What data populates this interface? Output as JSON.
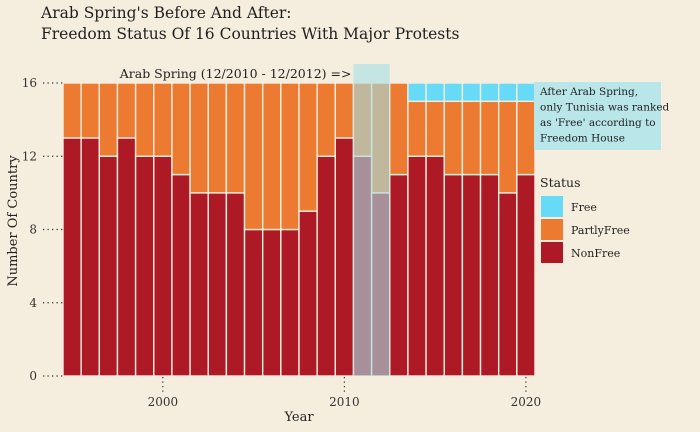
{
  "chart_data": {
    "type": "bar",
    "stacked": true,
    "title": "Arab Spring's Before And After:",
    "subtitle": "Freedom Status Of 16 Countries With Major Protests",
    "xlabel": "Year",
    "ylabel": "Number Of Country",
    "x": [
      1995,
      1996,
      1997,
      1998,
      1999,
      2000,
      2001,
      2002,
      2003,
      2004,
      2005,
      2006,
      2007,
      2008,
      2009,
      2010,
      2011,
      2012,
      2013,
      2014,
      2015,
      2016,
      2017,
      2018,
      2019,
      2020
    ],
    "series": [
      {
        "name": "NonFree",
        "color": "#ad1a26",
        "values": [
          13,
          13,
          12,
          13,
          12,
          12,
          11,
          10,
          10,
          10,
          8,
          8,
          8,
          9,
          12,
          13,
          12,
          10,
          11,
          12,
          12,
          11,
          11,
          11,
          10,
          11
        ]
      },
      {
        "name": "PartlyFree",
        "color": "#ec7a30",
        "values": [
          3,
          3,
          4,
          3,
          4,
          4,
          5,
          6,
          6,
          6,
          8,
          8,
          8,
          7,
          4,
          3,
          4,
          6,
          5,
          3,
          3,
          4,
          4,
          4,
          5,
          4
        ]
      },
      {
        "name": "Free",
        "color": "#66daf6",
        "values": [
          0,
          0,
          0,
          0,
          0,
          0,
          0,
          0,
          0,
          0,
          0,
          0,
          0,
          0,
          0,
          0,
          0,
          0,
          0,
          1,
          1,
          1,
          1,
          1,
          1,
          1
        ]
      }
    ],
    "ylim": [
      0,
      16
    ],
    "yticks": [
      0,
      4,
      8,
      12,
      16
    ],
    "xticks": [
      2000,
      2010,
      2020
    ],
    "xlim": [
      1994.5,
      2020.5
    ],
    "grid": false,
    "legend": {
      "title": "Status",
      "position": "right",
      "items": [
        "Free",
        "PartlyFree",
        "NonFree"
      ]
    },
    "highlight": {
      "x_from": 2011,
      "x_to": 2012,
      "label": "Arab Spring (12/2010 - 12/2012) =>",
      "color": "#a5dfe6"
    },
    "note": [
      "After Arab Spring,",
      "only Tunisia was ranked",
      "as 'Free' according to",
      "Freedom House"
    ]
  }
}
